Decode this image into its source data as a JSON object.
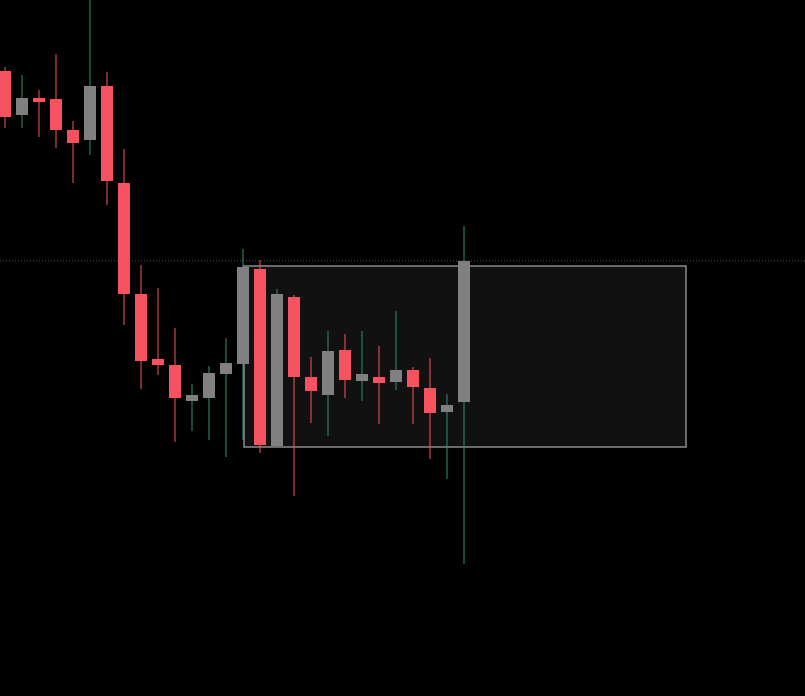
{
  "chart_data": {
    "type": "candlestick",
    "ylim": [
      0,
      696
    ],
    "up_color": "#808080",
    "down_color": "#f7525f",
    "up_wick_color": "#2a8f80",
    "down_wick_color": "#f7525f",
    "open": [
      625,
      581,
      598,
      597,
      566,
      556,
      610,
      513,
      402,
      337,
      331,
      295,
      298,
      322,
      332,
      427,
      250,
      399,
      319,
      301,
      346,
      315,
      319,
      314,
      326,
      308,
      284,
      294
    ],
    "high": [
      629,
      621,
      606,
      642,
      575,
      696,
      624,
      547,
      431,
      408,
      368,
      312,
      330,
      358,
      447,
      436,
      407,
      401,
      339,
      365,
      362,
      365,
      350,
      385,
      329,
      338,
      302,
      470
    ],
    "low": [
      568,
      568,
      559,
      548,
      513,
      541,
      491,
      371,
      307,
      321,
      254,
      265,
      256,
      239,
      256,
      243,
      250,
      200,
      273,
      260,
      298,
      295,
      272,
      306,
      272,
      237,
      217,
      132
    ],
    "close": [
      579,
      598,
      594,
      566,
      553,
      610,
      515,
      402,
      335,
      331,
      298,
      301,
      323,
      333,
      429,
      251,
      402,
      319,
      305,
      345,
      316,
      322,
      313,
      326,
      309,
      283,
      291,
      435
    ]
  }
}
